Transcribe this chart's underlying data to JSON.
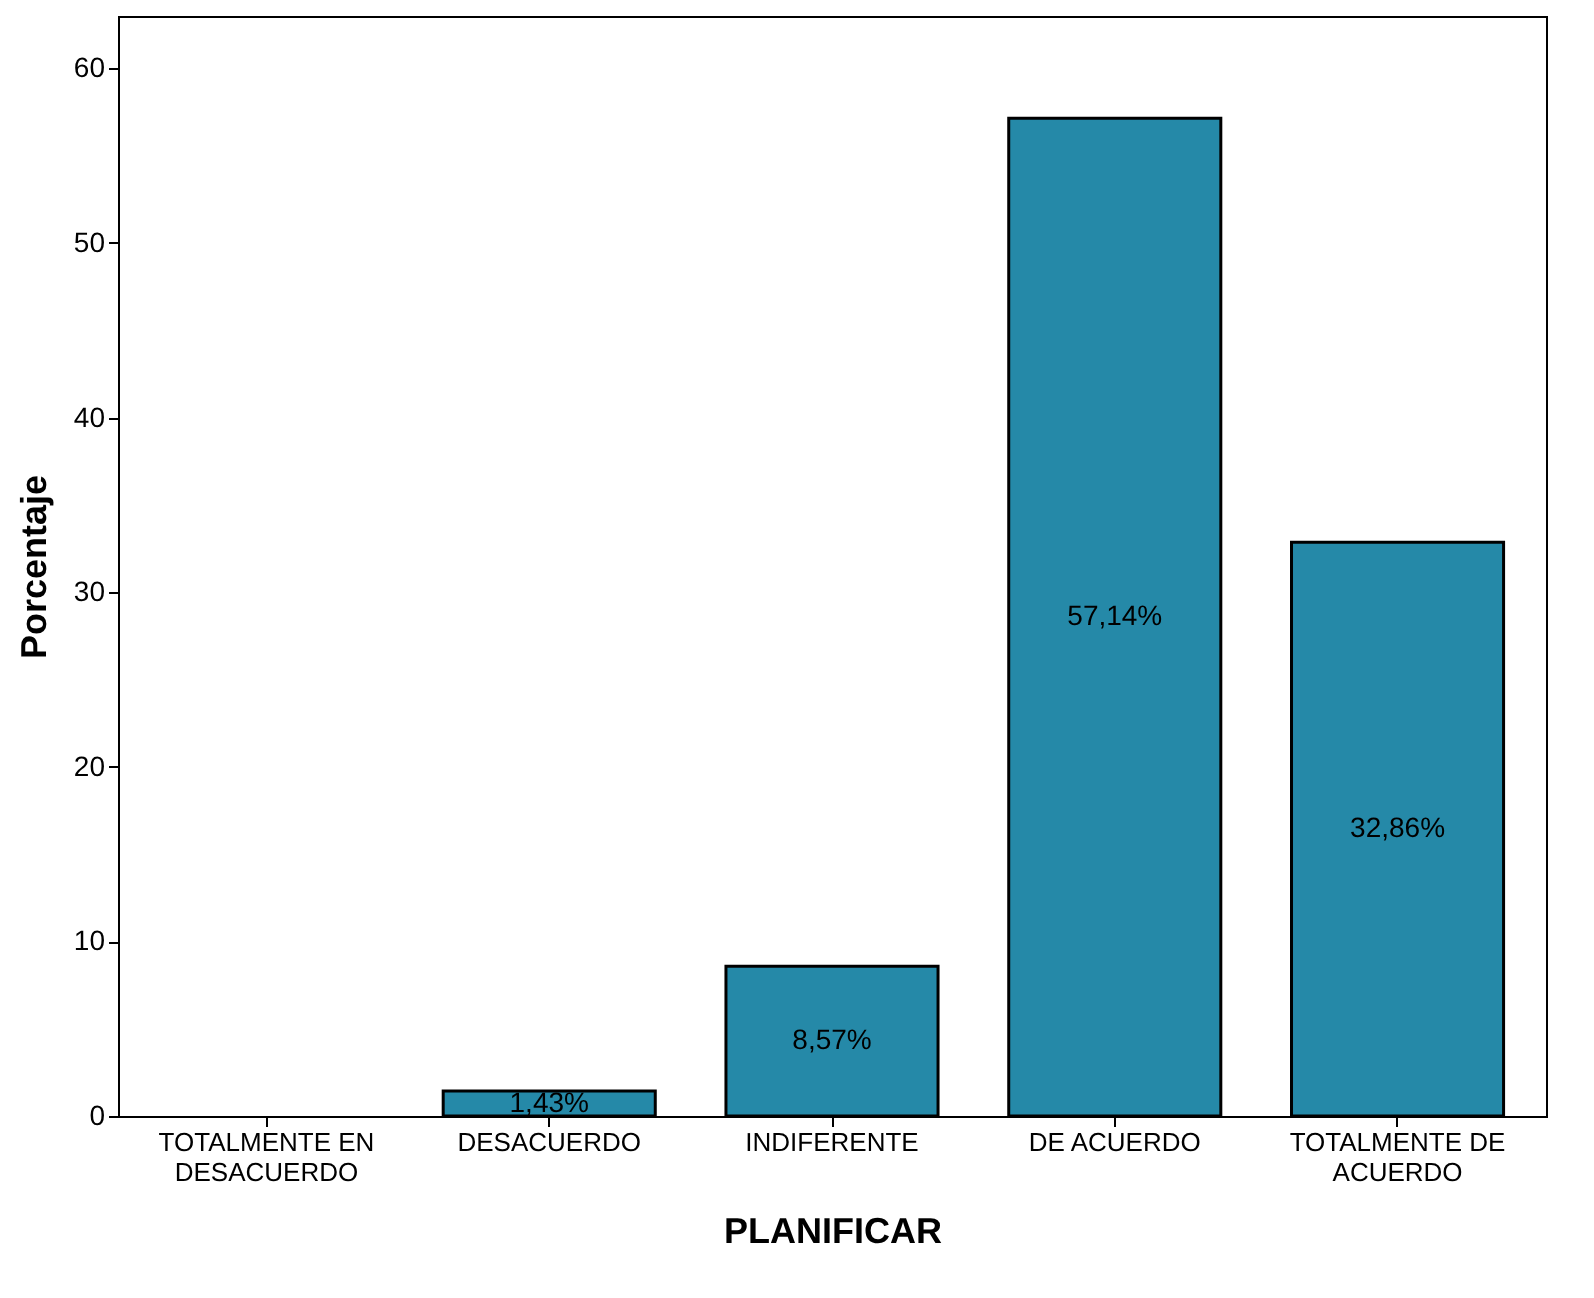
{
  "chart_data": {
    "type": "bar",
    "xlabel": "PLANIFICAR",
    "ylabel": "Porcentaje",
    "categories": [
      "TOTALMENTE EN DESACUERDO",
      "DESACUERDO",
      "INDIFERENTE",
      "DE ACUERDO",
      "TOTALMENTE DE ACUERDO"
    ],
    "values": [
      0,
      1.43,
      8.57,
      57.14,
      32.86
    ],
    "value_labels": [
      null,
      "1,43%",
      "8,57%",
      "57,14%",
      "32,86%"
    ],
    "color": "#2589a8",
    "ylim": [
      0,
      63
    ],
    "yticks": [
      0,
      10,
      20,
      30,
      40,
      50,
      60
    ],
    "grid": false
  }
}
